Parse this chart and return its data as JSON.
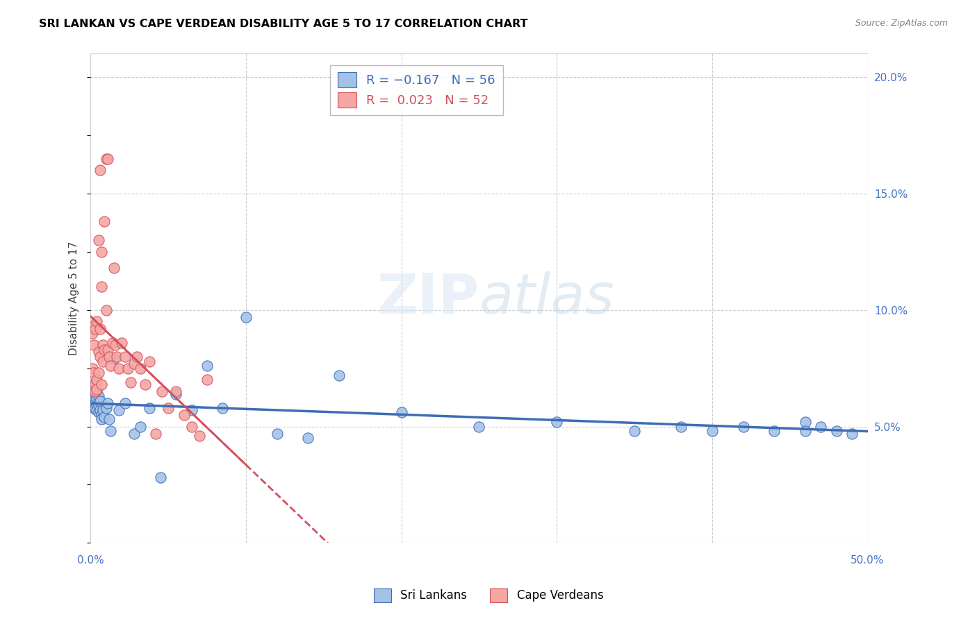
{
  "title": "SRI LANKAN VS CAPE VERDEAN DISABILITY AGE 5 TO 17 CORRELATION CHART",
  "source": "Source: ZipAtlas.com",
  "ylabel": "Disability Age 5 to 17",
  "watermark": "ZIPatlas",
  "xlim": [
    0.0,
    0.5
  ],
  "ylim": [
    0.0,
    0.21
  ],
  "yticks": [
    0.05,
    0.1,
    0.15,
    0.2
  ],
  "ytick_labels": [
    "5.0%",
    "10.0%",
    "15.0%",
    "20.0%"
  ],
  "xticks": [
    0.0,
    0.1,
    0.2,
    0.3,
    0.4,
    0.5
  ],
  "sri_lankan_color": "#a4c2e8",
  "cape_verdean_color": "#f4a7a3",
  "sri_lankan_line_color": "#3e6db5",
  "cape_verdean_line_color": "#d44f5e",
  "background_color": "#ffffff",
  "grid_color": "#cccccc",
  "axis_label_color": "#4472c4",
  "title_color": "#000000",
  "sri_lankans_x": [
    0.001,
    0.001,
    0.001,
    0.002,
    0.002,
    0.002,
    0.002,
    0.003,
    0.003,
    0.003,
    0.003,
    0.004,
    0.004,
    0.004,
    0.004,
    0.005,
    0.005,
    0.005,
    0.006,
    0.006,
    0.007,
    0.007,
    0.008,
    0.009,
    0.01,
    0.011,
    0.012,
    0.013,
    0.015,
    0.018,
    0.022,
    0.028,
    0.032,
    0.038,
    0.045,
    0.055,
    0.065,
    0.075,
    0.085,
    0.1,
    0.12,
    0.14,
    0.16,
    0.2,
    0.25,
    0.3,
    0.35,
    0.38,
    0.4,
    0.42,
    0.44,
    0.46,
    0.46,
    0.47,
    0.48,
    0.49
  ],
  "sri_lankans_y": [
    0.065,
    0.062,
    0.068,
    0.06,
    0.058,
    0.063,
    0.066,
    0.062,
    0.06,
    0.058,
    0.064,
    0.062,
    0.059,
    0.057,
    0.065,
    0.056,
    0.059,
    0.063,
    0.057,
    0.061,
    0.055,
    0.053,
    0.057,
    0.054,
    0.058,
    0.06,
    0.053,
    0.048,
    0.079,
    0.057,
    0.06,
    0.047,
    0.05,
    0.058,
    0.028,
    0.064,
    0.057,
    0.076,
    0.058,
    0.097,
    0.047,
    0.045,
    0.072,
    0.056,
    0.05,
    0.052,
    0.048,
    0.05,
    0.048,
    0.05,
    0.048,
    0.052,
    0.048,
    0.05,
    0.048,
    0.047
  ],
  "cape_verdeans_x": [
    0.001,
    0.001,
    0.002,
    0.002,
    0.002,
    0.003,
    0.003,
    0.003,
    0.004,
    0.004,
    0.004,
    0.005,
    0.005,
    0.005,
    0.006,
    0.006,
    0.006,
    0.007,
    0.007,
    0.007,
    0.008,
    0.008,
    0.009,
    0.009,
    0.01,
    0.01,
    0.011,
    0.011,
    0.012,
    0.013,
    0.014,
    0.015,
    0.016,
    0.017,
    0.018,
    0.02,
    0.022,
    0.024,
    0.026,
    0.028,
    0.03,
    0.032,
    0.035,
    0.038,
    0.042,
    0.046,
    0.05,
    0.055,
    0.06,
    0.065,
    0.07,
    0.075
  ],
  "cape_verdeans_y": [
    0.09,
    0.075,
    0.085,
    0.073,
    0.093,
    0.068,
    0.065,
    0.092,
    0.07,
    0.066,
    0.095,
    0.073,
    0.082,
    0.13,
    0.092,
    0.08,
    0.16,
    0.068,
    0.11,
    0.125,
    0.085,
    0.078,
    0.138,
    0.083,
    0.165,
    0.1,
    0.165,
    0.083,
    0.08,
    0.076,
    0.086,
    0.118,
    0.085,
    0.08,
    0.075,
    0.086,
    0.08,
    0.075,
    0.069,
    0.077,
    0.08,
    0.075,
    0.068,
    0.078,
    0.047,
    0.065,
    0.058,
    0.065,
    0.055,
    0.05,
    0.046,
    0.07
  ]
}
